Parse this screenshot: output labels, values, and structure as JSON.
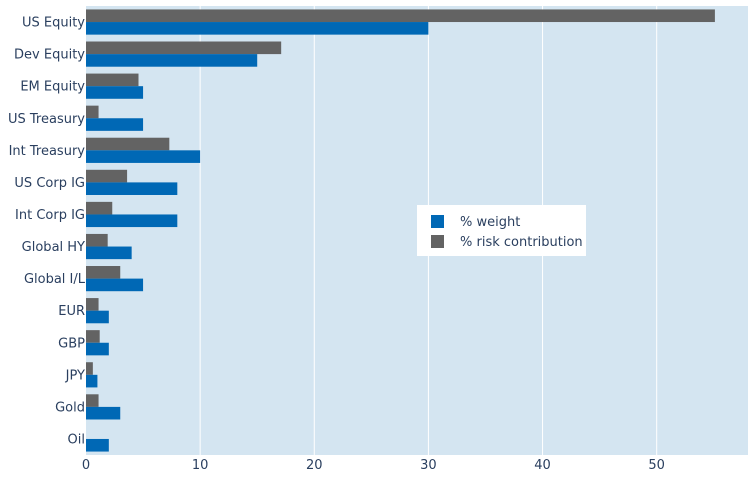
{
  "chart_data": {
    "type": "bar",
    "orientation": "horizontal",
    "categories": [
      "US Equity",
      "Dev Equity",
      "EM Equity",
      "US Treasury",
      "Int Treasury",
      "US Corp IG",
      "Int Corp IG",
      "Global HY",
      "Global I/L",
      "EUR",
      "GBP",
      "JPY",
      "Gold",
      "Oil"
    ],
    "series": [
      {
        "name": "% weight",
        "color": "#0068b5",
        "values": [
          30,
          15,
          5,
          5,
          10,
          8,
          8,
          4,
          5,
          2,
          2,
          1,
          3,
          2
        ]
      },
      {
        "name": "% risk contribution",
        "color": "#636363",
        "values": [
          55.1,
          17.1,
          4.6,
          1.1,
          7.3,
          3.6,
          2.3,
          1.9,
          3.0,
          1.1,
          1.2,
          0.6,
          1.1,
          0
        ]
      }
    ],
    "xlim": [
      0,
      58
    ],
    "xticks": [
      0,
      10,
      20,
      30,
      40,
      50
    ],
    "title": "",
    "xlabel": "",
    "ylabel": "",
    "legend_position": "center-right",
    "plot_background": "#d4e5f1",
    "grid": true
  }
}
